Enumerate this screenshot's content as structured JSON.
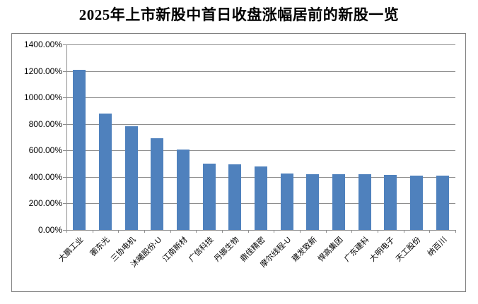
{
  "chart_data": {
    "type": "bar",
    "title": "2025年上市新股中首日收盘涨幅居前的新股一览",
    "categories": [
      "大鹏工业",
      "蘅东光",
      "三协电机",
      "沐曦股份-U",
      "江南新材",
      "广信科技",
      "丹娜生物",
      "鼎佳精密",
      "摩尔线程-U",
      "建发致新",
      "悍高集团",
      "广东建科",
      "大明电子",
      "天工股份",
      "纳百川"
    ],
    "values": [
      1210,
      876,
      780,
      693,
      606,
      500,
      496,
      477,
      428,
      422,
      422,
      421,
      417,
      412,
      411
    ],
    "value_unit": "percent",
    "xlabel": "",
    "ylabel": "",
    "ylim": [
      0,
      1400
    ],
    "ytick_step": 200,
    "ytick_labels": [
      "0.00%",
      "200.00%",
      "400.00%",
      "600.00%",
      "800.00%",
      "1000.00%",
      "1200.00%",
      "1400.00%"
    ],
    "grid": true,
    "legend": "none",
    "bar_color": "#4F81BD",
    "grid_color": "#8E8E8E",
    "frame_border_color": "#818181"
  }
}
